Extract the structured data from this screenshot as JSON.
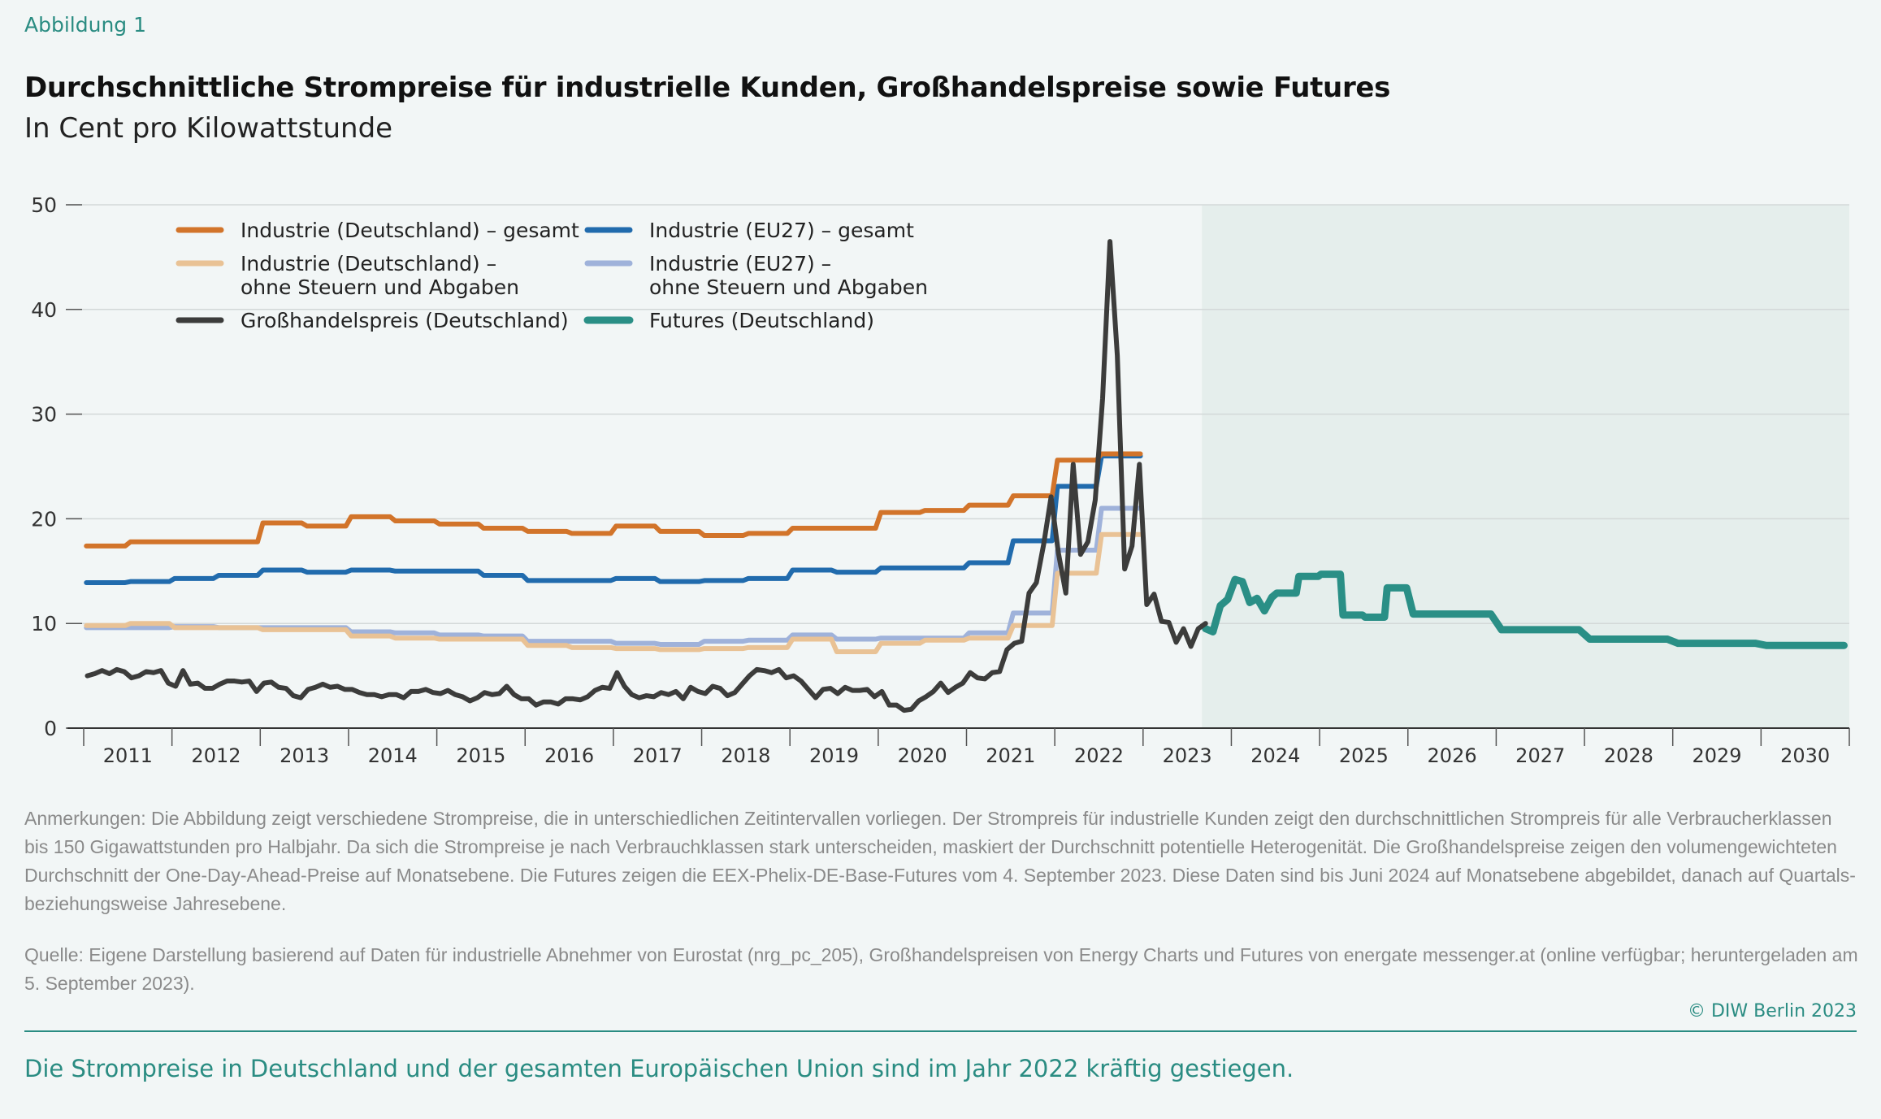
{
  "figure_label": "Abbildung 1",
  "title": "Durchschnittliche Strompreise für industrielle Kunden, Großhandelspreise sowie Futures",
  "subtitle": "In Cent pro Kilowattstunde",
  "notes": "Anmerkungen: Die Abbildung zeigt verschiedene Strompreise, die in unterschiedlichen Zeitintervallen vorliegen. Der Strompreis für industrielle Kunden zeigt den durchschnittlichen Strompreis für alle Verbraucherklassen bis 150 Gigawattstunden pro Halbjahr. Da sich die Strompreise je nach Verbrauchklassen stark unterscheiden, maskiert der Durchschnitt potentielle Heterogenität. Die Großhandelspreise zeigen den volumengewichteten Durchschnitt der One-Day-Ahead-Preise auf Monatsebene. Die Futures zeigen die EEX-Phelix-DE-Base-Futures vom 4. September 2023. Diese Daten sind bis Juni 2024 auf Monatsebene abgebildet, danach auf Quartals- beziehungsweise Jahresebene.",
  "source": "Quelle: Eigene Darstellung basierend auf Daten für industrielle Abnehmer von Eurostat (nrg_pc_205), Großhandelspreisen von Energy Charts und Futures von energate messenger.at (online verfügbar; heruntergeladen am 5. September 2023).",
  "copyright": "© DIW Berlin 2023",
  "takeaway": "Die Strompreise in Deutschland und der gesamten Europäischen Union sind im Jahr 2022 kräftig gestiegen.",
  "chart_data": {
    "type": "line",
    "xlabel": "",
    "ylabel": "",
    "ylim": [
      0,
      50
    ],
    "yticks": [
      0,
      10,
      20,
      30,
      40,
      50
    ],
    "xlim": [
      2011,
      2031
    ],
    "xtick_labels": [
      "2011",
      "2012",
      "2013",
      "2014",
      "2015",
      "2016",
      "2017",
      "2018",
      "2019",
      "2020",
      "2021",
      "2022",
      "2023",
      "2024",
      "2025",
      "2026",
      "2027",
      "2028",
      "2029",
      "2030"
    ],
    "grid": "horizontal",
    "legend_position": "top-left",
    "shaded_region": {
      "from": "2023-09",
      "to": "2030",
      "color": "#e5eeec"
    },
    "series": [
      {
        "name": "Industrie (Deutschland) – gesamt",
        "color": "#d2742a",
        "resolution": "half-year",
        "periods": [
          "2011-S1",
          "2011-S2",
          "2012-S1",
          "2012-S2",
          "2013-S1",
          "2013-S2",
          "2014-S1",
          "2014-S2",
          "2015-S1",
          "2015-S2",
          "2016-S1",
          "2016-S2",
          "2017-S1",
          "2017-S2",
          "2018-S1",
          "2018-S2",
          "2019-S1",
          "2019-S2",
          "2020-S1",
          "2020-S2",
          "2021-S1",
          "2021-S2",
          "2022-S1",
          "2022-S2"
        ],
        "values": [
          17.4,
          17.8,
          17.8,
          17.8,
          19.6,
          19.3,
          20.2,
          19.8,
          19.5,
          19.1,
          18.8,
          18.6,
          19.3,
          18.8,
          18.4,
          18.6,
          19.1,
          19.1,
          20.6,
          20.8,
          21.3,
          22.2,
          25.6,
          26.2
        ]
      },
      {
        "name": "Industrie (EU27) – gesamt",
        "color": "#216bad",
        "resolution": "half-year",
        "periods": [
          "2011-S1",
          "2011-S2",
          "2012-S1",
          "2012-S2",
          "2013-S1",
          "2013-S2",
          "2014-S1",
          "2014-S2",
          "2015-S1",
          "2015-S2",
          "2016-S1",
          "2016-S2",
          "2017-S1",
          "2017-S2",
          "2018-S1",
          "2018-S2",
          "2019-S1",
          "2019-S2",
          "2020-S1",
          "2020-S2",
          "2021-S1",
          "2021-S2",
          "2022-S1",
          "2022-S2"
        ],
        "values": [
          13.9,
          14.0,
          14.3,
          14.6,
          15.1,
          14.9,
          15.1,
          15.0,
          15.0,
          14.6,
          14.1,
          14.1,
          14.3,
          14.0,
          14.1,
          14.3,
          15.1,
          14.9,
          15.3,
          15.3,
          15.8,
          17.9,
          23.1,
          26.0
        ]
      },
      {
        "name": "Industrie (Deutschland) – ohne Steuern und Abgaben",
        "color": "#e9c295",
        "resolution": "half-year",
        "periods": [
          "2011-S1",
          "2011-S2",
          "2012-S1",
          "2012-S2",
          "2013-S1",
          "2013-S2",
          "2014-S1",
          "2014-S2",
          "2015-S1",
          "2015-S2",
          "2016-S1",
          "2016-S2",
          "2017-S1",
          "2017-S2",
          "2018-S1",
          "2018-S2",
          "2019-S1",
          "2019-S2",
          "2020-S1",
          "2020-S2",
          "2021-S1",
          "2021-S2",
          "2022-S1",
          "2022-S2"
        ],
        "values": [
          9.8,
          10.0,
          9.6,
          9.6,
          9.4,
          9.4,
          8.8,
          8.6,
          8.5,
          8.5,
          7.9,
          7.7,
          7.6,
          7.5,
          7.6,
          7.7,
          8.5,
          7.3,
          8.1,
          8.4,
          8.6,
          9.8,
          14.8,
          18.5
        ]
      },
      {
        "name": "Industrie (EU27) – ohne Steuern und Abgaben",
        "color": "#9fb2da",
        "resolution": "half-year",
        "periods": [
          "2011-S1",
          "2011-S2",
          "2012-S1",
          "2012-S2",
          "2013-S1",
          "2013-S2",
          "2014-S1",
          "2014-S2",
          "2015-S1",
          "2015-S2",
          "2016-S1",
          "2016-S2",
          "2017-S1",
          "2017-S2",
          "2018-S1",
          "2018-S2",
          "2019-S1",
          "2019-S2",
          "2020-S1",
          "2020-S2",
          "2021-S1",
          "2021-S2",
          "2022-S1",
          "2022-S2"
        ],
        "values": [
          9.6,
          9.6,
          9.7,
          9.6,
          9.6,
          9.6,
          9.2,
          9.1,
          8.9,
          8.8,
          8.3,
          8.3,
          8.1,
          8.0,
          8.3,
          8.4,
          8.9,
          8.5,
          8.6,
          8.6,
          9.1,
          11.0,
          17.0,
          21.0
        ]
      },
      {
        "name": "Großhandelspreis (Deutschland)",
        "color": "#3c3c3b",
        "resolution": "month",
        "start": "2011-01",
        "values": [
          5.0,
          5.2,
          5.5,
          5.2,
          5.6,
          5.4,
          4.8,
          5.0,
          5.4,
          5.3,
          5.5,
          4.3,
          4.0,
          5.5,
          4.2,
          4.3,
          3.8,
          3.8,
          4.2,
          4.5,
          4.5,
          4.4,
          4.5,
          3.5,
          4.3,
          4.4,
          3.9,
          3.8,
          3.1,
          2.9,
          3.7,
          3.9,
          4.2,
          3.9,
          4.0,
          3.7,
          3.7,
          3.4,
          3.2,
          3.2,
          3.0,
          3.2,
          3.2,
          2.9,
          3.5,
          3.5,
          3.7,
          3.4,
          3.3,
          3.6,
          3.2,
          3.0,
          2.6,
          2.9,
          3.4,
          3.2,
          3.3,
          4.0,
          3.2,
          2.8,
          2.8,
          2.2,
          2.5,
          2.5,
          2.3,
          2.8,
          2.8,
          2.7,
          3.0,
          3.6,
          3.9,
          3.8,
          5.3,
          4.0,
          3.2,
          2.9,
          3.1,
          3.0,
          3.4,
          3.2,
          3.5,
          2.8,
          3.9,
          3.5,
          3.3,
          4.0,
          3.8,
          3.1,
          3.4,
          4.2,
          5.0,
          5.6,
          5.5,
          5.3,
          5.6,
          4.8,
          5.0,
          4.5,
          3.7,
          2.9,
          3.7,
          3.8,
          3.3,
          3.9,
          3.6,
          3.6,
          3.7,
          3.0,
          3.5,
          2.2,
          2.2,
          1.7,
          1.8,
          2.6,
          3.0,
          3.5,
          4.3,
          3.4,
          3.9,
          4.3,
          5.3,
          4.8,
          4.7,
          5.3,
          5.4,
          7.5,
          8.1,
          8.3,
          12.9,
          13.9,
          17.6,
          22.1,
          16.7,
          12.9,
          25.2,
          16.6,
          17.8,
          21.8,
          31.5,
          46.5,
          35.6,
          15.2,
          17.4,
          25.2,
          11.8,
          12.8,
          10.2,
          10.1,
          8.2,
          9.5,
          7.8,
          9.5,
          10.0
        ]
      },
      {
        "name": "Futures (Deutschland)",
        "color": "#2a8f86",
        "resolution": "mixed",
        "periods": [
          "2023-09",
          "2023-10",
          "2023-11",
          "2023-12",
          "2024-01",
          "2024-02",
          "2024-03",
          "2024-04",
          "2024-05",
          "2024-06",
          "2024-Q3",
          "2024-Q4",
          "2025-Q1",
          "2025-Q2",
          "2025-Q3",
          "2025-Q4",
          "2026",
          "2027",
          "2028",
          "2029",
          "2030"
        ],
        "values": [
          9.5,
          9.2,
          11.7,
          12.3,
          14.2,
          14.0,
          12.0,
          12.4,
          11.2,
          12.5,
          12.9,
          14.5,
          14.7,
          10.8,
          10.6,
          13.4,
          10.9,
          9.4,
          8.5,
          8.1,
          7.9
        ]
      }
    ]
  }
}
